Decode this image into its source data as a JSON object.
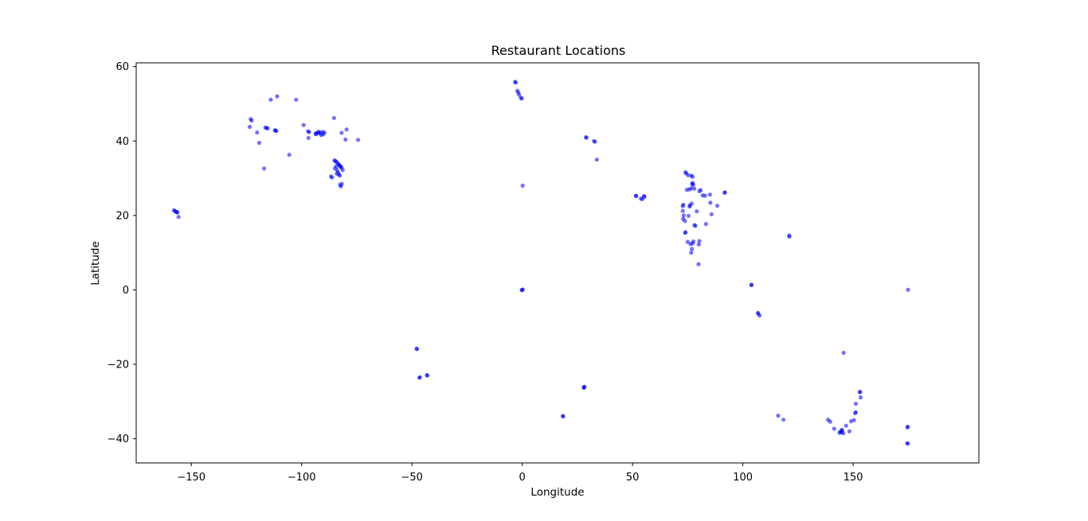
{
  "chart_data": {
    "type": "scatter",
    "title": "Restaurant Locations",
    "xlabel": "Longitude",
    "ylabel": "Latitude",
    "xlim": [
      -175,
      207
    ],
    "ylim": [
      -46.5,
      61
    ],
    "xticks": [
      -150,
      -100,
      -50,
      0,
      50,
      100,
      150
    ],
    "yticks": [
      -40,
      -20,
      0,
      20,
      40,
      60
    ],
    "xtick_labels": [
      "−150",
      "−100",
      "−50",
      "0",
      "50",
      "100",
      "150"
    ],
    "ytick_labels": [
      "−40",
      "−20",
      "0",
      "20",
      "40",
      "60"
    ],
    "grid": false,
    "legend": "none",
    "marker_color": "#0000ff",
    "marker_alpha": 0.55,
    "points": [
      [
        -157.9,
        21.4
      ],
      [
        -157.5,
        21.2
      ],
      [
        -157.0,
        21.0
      ],
      [
        -156.6,
        20.9
      ],
      [
        -156.3,
        20.8
      ],
      [
        -155.8,
        19.6
      ],
      [
        -123.1,
        45.9
      ],
      [
        -122.7,
        45.5
      ],
      [
        -123.5,
        43.8
      ],
      [
        -120.2,
        42.3
      ],
      [
        -119.2,
        39.5
      ],
      [
        -116.4,
        43.6
      ],
      [
        -115.9,
        43.5
      ],
      [
        -115.4,
        43.4
      ],
      [
        -114.0,
        51.1
      ],
      [
        -111.1,
        52.0
      ],
      [
        -112.1,
        42.9
      ],
      [
        -111.8,
        42.8
      ],
      [
        -111.5,
        42.7
      ],
      [
        -102.5,
        51.1
      ],
      [
        -99.1,
        44.3
      ],
      [
        -105.6,
        36.3
      ],
      [
        -117.0,
        32.6
      ],
      [
        -97.1,
        42.6
      ],
      [
        -96.6,
        42.4
      ],
      [
        -96.9,
        40.8
      ],
      [
        -93.5,
        41.8
      ],
      [
        -93.0,
        42.1
      ],
      [
        -92.5,
        42.3
      ],
      [
        -92.1,
        42.5
      ],
      [
        -91.6,
        42.0
      ],
      [
        -91.1,
        41.6
      ],
      [
        -90.6,
        42.4
      ],
      [
        -90.1,
        41.8
      ],
      [
        -89.7,
        42.3
      ],
      [
        -93.7,
        42.0
      ],
      [
        -85.3,
        46.2
      ],
      [
        -81.9,
        42.2
      ],
      [
        -79.6,
        43.1
      ],
      [
        -80.1,
        40.4
      ],
      [
        -74.4,
        40.3
      ],
      [
        -85.1,
        34.8
      ],
      [
        -84.7,
        34.6
      ],
      [
        -84.2,
        34.4
      ],
      [
        -83.6,
        34.0
      ],
      [
        -82.9,
        33.5
      ],
      [
        -82.5,
        33.2
      ],
      [
        -81.9,
        32.8
      ],
      [
        -81.4,
        32.2
      ],
      [
        -84.4,
        33.2
      ],
      [
        -84.9,
        32.6
      ],
      [
        -83.9,
        32.2
      ],
      [
        -83.5,
        31.6
      ],
      [
        -83.1,
        31.0
      ],
      [
        -82.7,
        30.7
      ],
      [
        -86.7,
        30.5
      ],
      [
        -86.2,
        30.2
      ],
      [
        -82.6,
        28.2
      ],
      [
        -82.2,
        27.8
      ],
      [
        -81.8,
        28.5
      ],
      [
        -84.1,
        31.2
      ],
      [
        -83.2,
        33.7
      ],
      [
        -82.3,
        33.1
      ],
      [
        -3.2,
        55.9
      ],
      [
        -3.0,
        55.7
      ],
      [
        -2.2,
        53.5
      ],
      [
        -1.8,
        53.0
      ],
      [
        -1.4,
        52.4
      ],
      [
        -0.6,
        51.6
      ],
      [
        -0.2,
        51.4
      ],
      [
        0.2,
        28.0
      ],
      [
        0.0,
        0.0
      ],
      [
        0.2,
        0.1
      ],
      [
        -0.2,
        -0.1
      ],
      [
        28.9,
        41.0
      ],
      [
        29.1,
        40.9
      ],
      [
        32.5,
        40.0
      ],
      [
        33.0,
        39.8
      ],
      [
        33.8,
        35.0
      ],
      [
        51.5,
        25.3
      ],
      [
        51.7,
        25.2
      ],
      [
        53.8,
        24.5
      ],
      [
        54.4,
        24.4
      ],
      [
        55.2,
        25.2
      ],
      [
        55.4,
        25.0
      ],
      [
        -47.9,
        -15.8
      ],
      [
        -47.7,
        -15.9
      ],
      [
        -46.6,
        -23.6
      ],
      [
        -46.4,
        -23.5
      ],
      [
        -43.2,
        -22.9
      ],
      [
        -43.0,
        -23.0
      ],
      [
        18.4,
        -33.9
      ],
      [
        18.6,
        -34.0
      ],
      [
        28.0,
        -26.2
      ],
      [
        28.2,
        -26.0
      ],
      [
        27.9,
        -26.3
      ],
      [
        74.0,
        31.6
      ],
      [
        74.4,
        31.3
      ],
      [
        75.2,
        30.8
      ],
      [
        76.7,
        30.7
      ],
      [
        77.2,
        30.4
      ],
      [
        77.3,
        28.7
      ],
      [
        77.0,
        28.5
      ],
      [
        77.5,
        28.2
      ],
      [
        76.6,
        27.3
      ],
      [
        75.8,
        27.0
      ],
      [
        73.0,
        22.9
      ],
      [
        72.8,
        22.5
      ],
      [
        72.8,
        21.2
      ],
      [
        73.2,
        20.0
      ],
      [
        72.9,
        19.1
      ],
      [
        73.8,
        18.5
      ],
      [
        74.0,
        15.5
      ],
      [
        73.9,
        15.3
      ],
      [
        75.0,
        12.9
      ],
      [
        76.3,
        12.3
      ],
      [
        77.6,
        13.0
      ],
      [
        77.2,
        12.5
      ],
      [
        76.6,
        10.0
      ],
      [
        76.9,
        11.0
      ],
      [
        80.3,
        13.1
      ],
      [
        80.0,
        12.2
      ],
      [
        79.9,
        6.9
      ],
      [
        78.1,
        17.4
      ],
      [
        78.5,
        17.2
      ],
      [
        79.1,
        21.1
      ],
      [
        76.0,
        22.7
      ],
      [
        75.9,
        22.4
      ],
      [
        75.4,
        19.9
      ],
      [
        80.9,
        26.8
      ],
      [
        81.8,
        25.4
      ],
      [
        82.9,
        25.3
      ],
      [
        85.1,
        25.6
      ],
      [
        85.8,
        20.3
      ],
      [
        83.3,
        17.7
      ],
      [
        88.4,
        22.6
      ],
      [
        91.7,
        26.1
      ],
      [
        91.9,
        26.2
      ],
      [
        85.3,
        23.4
      ],
      [
        76.8,
        23.2
      ],
      [
        74.6,
        26.9
      ],
      [
        78.0,
        27.2
      ],
      [
        80.3,
        26.5
      ],
      [
        121.0,
        14.6
      ],
      [
        121.1,
        14.3
      ],
      [
        103.8,
        1.3
      ],
      [
        104.0,
        1.35
      ],
      [
        106.8,
        -6.2
      ],
      [
        107.0,
        -6.4
      ],
      [
        107.6,
        -6.9
      ],
      [
        145.7,
        -16.9
      ],
      [
        153.0,
        -27.5
      ],
      [
        153.2,
        -27.4
      ],
      [
        153.4,
        -28.9
      ],
      [
        151.2,
        -30.6
      ],
      [
        151.2,
        -32.9
      ],
      [
        150.9,
        -33.1
      ],
      [
        150.4,
        -35.0
      ],
      [
        149.1,
        -35.3
      ],
      [
        148.3,
        -38.0
      ],
      [
        146.8,
        -36.5
      ],
      [
        145.0,
        -37.8
      ],
      [
        144.9,
        -37.6
      ],
      [
        144.2,
        -38.1
      ],
      [
        145.5,
        -38.5
      ],
      [
        143.8,
        -38.4
      ],
      [
        144.7,
        -38.2
      ],
      [
        141.4,
        -37.3
      ],
      [
        139.6,
        -35.4
      ],
      [
        138.6,
        -34.9
      ],
      [
        118.4,
        -34.9
      ],
      [
        116.0,
        -33.8
      ],
      [
        174.8,
        -36.8
      ],
      [
        174.6,
        -36.9
      ],
      [
        174.8,
        -41.3
      ],
      [
        174.5,
        -41.2
      ],
      [
        174.9,
        0.0
      ]
    ]
  }
}
